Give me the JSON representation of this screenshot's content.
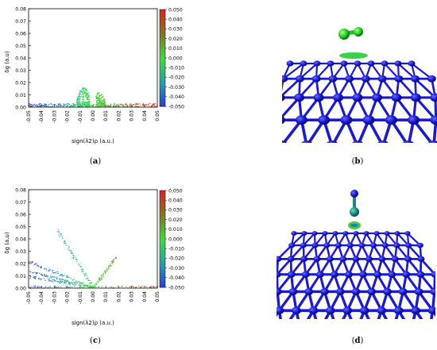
{
  "captions": {
    "a": {
      "open": "(",
      "letter": "a",
      "close": ")"
    },
    "b": {
      "open": "(",
      "letter": "b",
      "close": ")"
    },
    "c": {
      "open": "(",
      "letter": "c",
      "close": ")"
    },
    "d": {
      "open": "(",
      "letter": "d",
      "close": ")"
    }
  },
  "colorbar": {
    "ticks": [
      "0.050",
      "0.040",
      "0.030",
      "0.020",
      "0.010",
      "0.000",
      "-0.010",
      "-0.020",
      "-0.030",
      "-0.040",
      "-0.050"
    ],
    "colors": [
      "#dd2222",
      "#a0582a",
      "#6e8a2c",
      "#3fd83a",
      "#2aa888",
      "#2a4fd8"
    ]
  },
  "chart_data": [
    {
      "type": "scatter",
      "panel": "a",
      "ylabel": "δg (a.u)",
      "xlabel": "sign(λ2)ρ (a.u.)",
      "xlim": [
        -0.05,
        0.05
      ],
      "ylim": [
        0,
        0.08
      ],
      "xticks": [
        "-0.05",
        "-0.04",
        "-0.03",
        "-0.02",
        "-0.01",
        "0.00",
        "0.01",
        "0.02",
        "0.03",
        "0.04",
        "0.05"
      ],
      "yticks": [
        "0.00",
        "0.01",
        "0.02",
        "0.03",
        "0.04",
        "0.05",
        "0.06",
        "0.07",
        "0.08"
      ],
      "colorbar_range": [
        -0.05,
        0.05
      ],
      "clusters": [
        {
          "x": [
            -0.05,
            0.05
          ],
          "y": [
            0.0,
            0.002
          ],
          "description_points": 260
        },
        {
          "peak_x": -0.0075,
          "peak_y": 0.016,
          "x_range": [
            -0.013,
            -0.003
          ]
        },
        {
          "peak_x": 0.0045,
          "peak_y": 0.012,
          "x_range": [
            0.002,
            0.009
          ]
        }
      ]
    },
    {
      "type": "scatter",
      "panel": "c",
      "ylabel": "δg (a.u)",
      "xlabel": "sign(λ2)ρ (a.u.)",
      "xlim": [
        -0.05,
        0.05
      ],
      "ylim": [
        0,
        0.08
      ],
      "xticks": [
        "-0.05",
        "-0.04",
        "-0.03",
        "-0.02",
        "-0.01",
        "0.00",
        "0.01",
        "0.02",
        "0.03",
        "0.04",
        "0.05"
      ],
      "yticks": [
        "0.00",
        "0.01",
        "0.02",
        "0.03",
        "0.04",
        "0.05",
        "0.06",
        "0.07",
        "0.08"
      ],
      "colorbar_range": [
        -0.05,
        0.05
      ],
      "spikes": [
        {
          "x0": -0.028,
          "y0": 0.047,
          "x1": 0.0,
          "y1": 0.0
        },
        {
          "x0": -0.05,
          "y0": 0.021,
          "x1": 0.0,
          "y1": 0.0
        },
        {
          "x0": -0.05,
          "y0": 0.013,
          "x1": 0.0,
          "y1": 0.0
        },
        {
          "x0": -0.05,
          "y0": 0.009,
          "x1": 0.0,
          "y1": 0.0
        },
        {
          "x0": 0.018,
          "y0": 0.025,
          "x1": 0.0,
          "y1": 0.0
        }
      ]
    }
  ]
}
